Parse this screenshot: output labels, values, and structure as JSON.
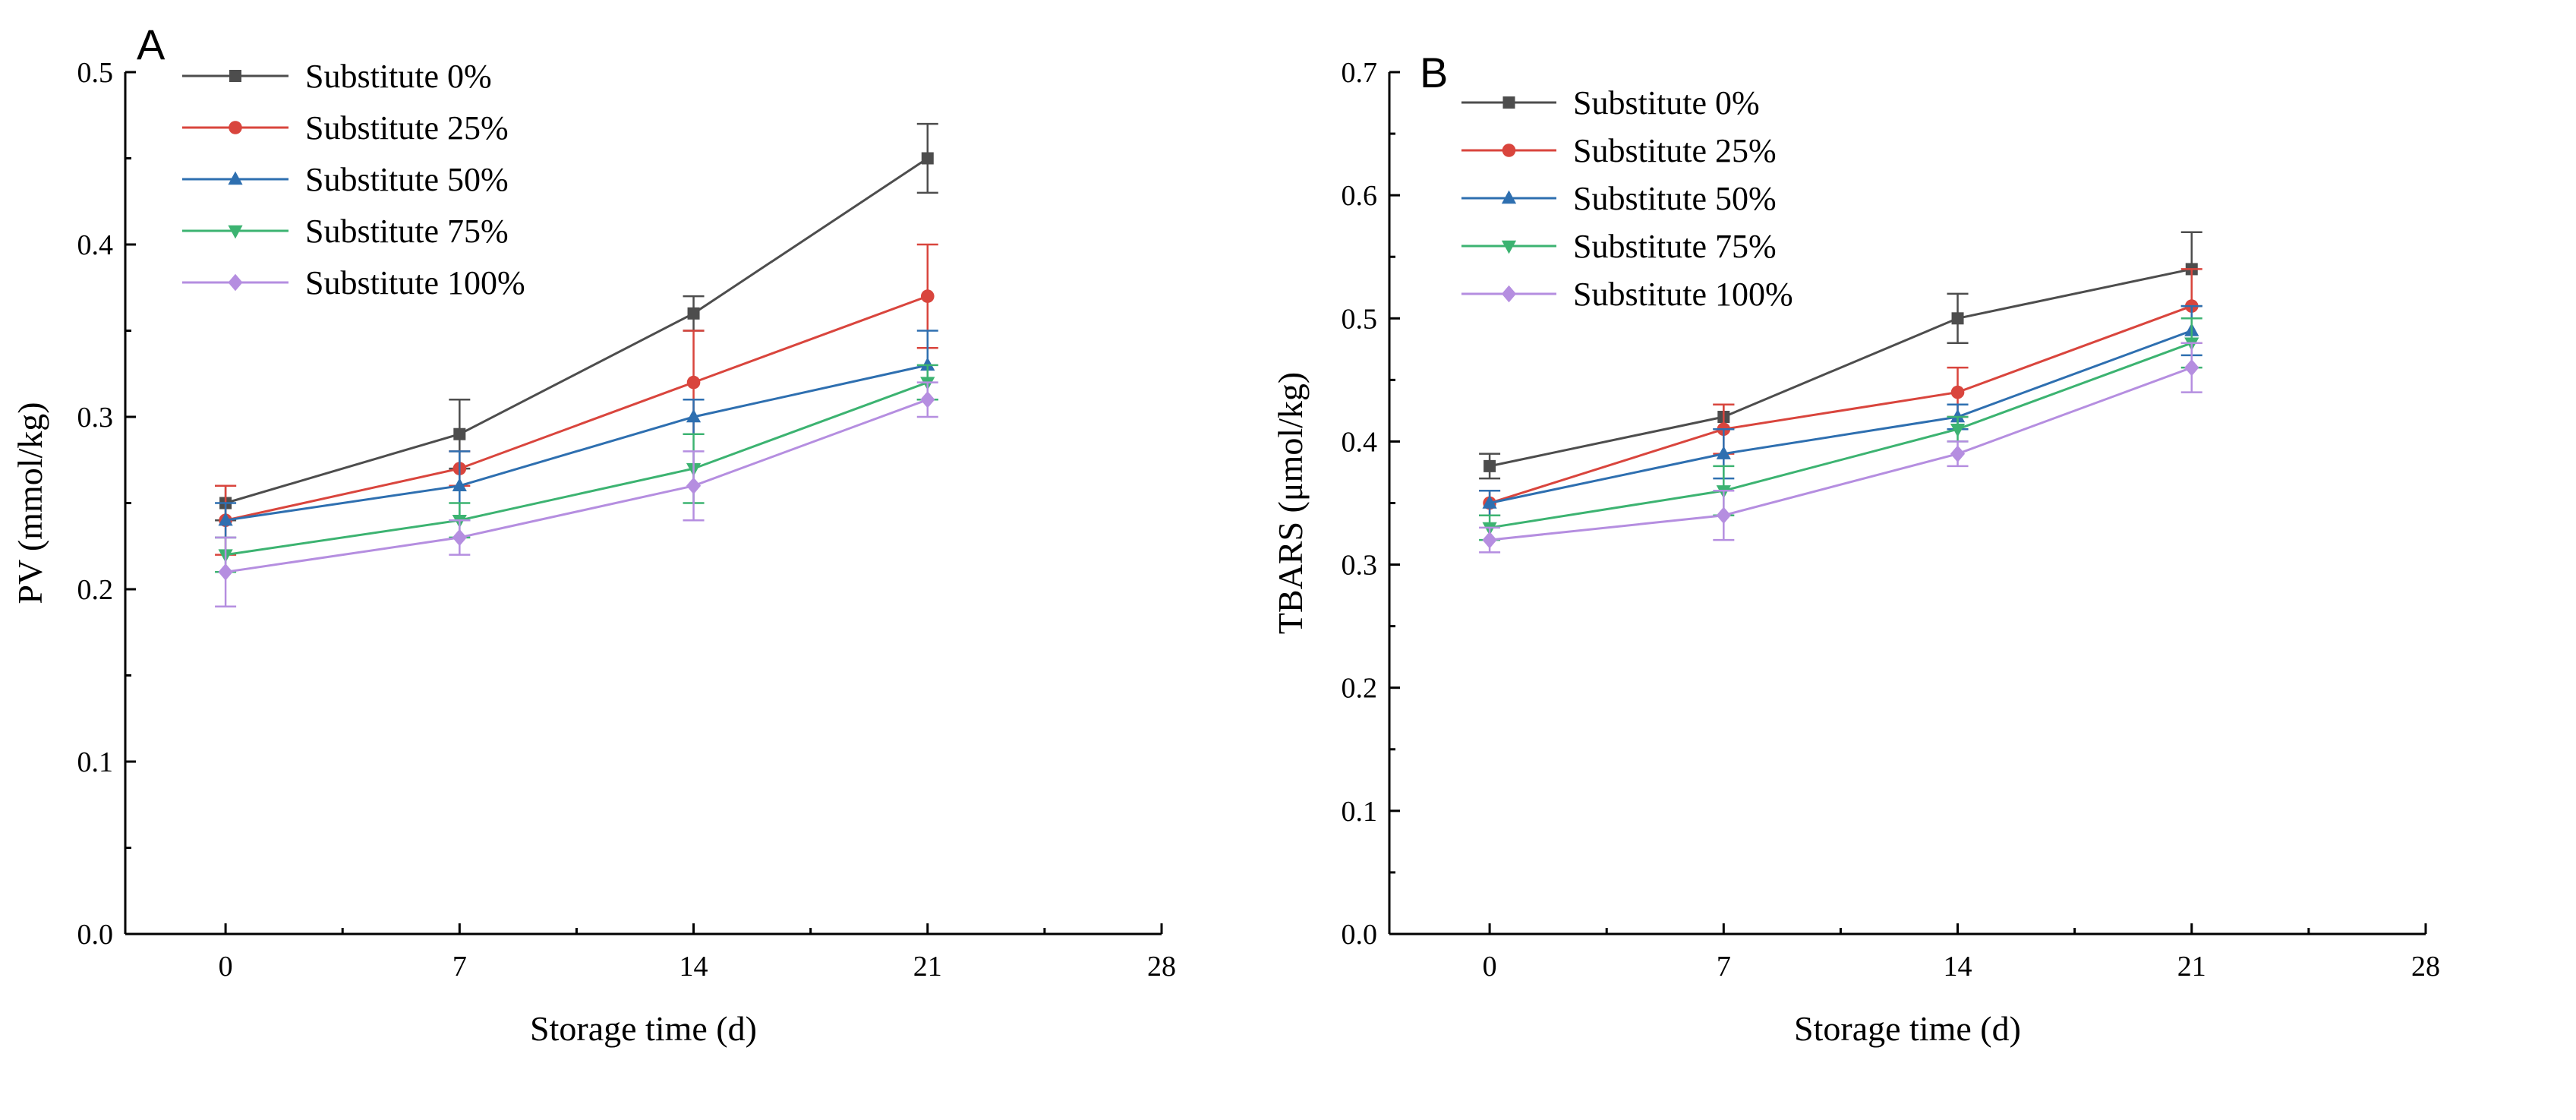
{
  "chart_data": [
    {
      "type": "line",
      "panel_label": "A",
      "xlabel": "Storage time (d)",
      "ylabel": "PV (mmol/kg)",
      "x_ticks": [
        0,
        7,
        14,
        21,
        28
      ],
      "y_ticks": [
        0.0,
        0.1,
        0.2,
        0.3,
        0.4,
        0.5
      ],
      "y_tick_labels": [
        "0.0",
        "0.1",
        "0.2",
        "0.3",
        "0.4",
        "0.5"
      ],
      "xlim": [
        -3,
        28
      ],
      "ylim": [
        0,
        0.5
      ],
      "legend_position": "top-left",
      "grid": false,
      "x": [
        0,
        7,
        14,
        21
      ],
      "series": [
        {
          "name": "Substitute 0%",
          "color": "#4d4d4d",
          "marker": "square",
          "values": [
            0.25,
            0.29,
            0.36,
            0.45
          ],
          "errors": [
            0.01,
            0.02,
            0.01,
            0.02
          ]
        },
        {
          "name": "Substitute 25%",
          "color": "#d9453d",
          "marker": "circle",
          "values": [
            0.24,
            0.27,
            0.32,
            0.37
          ],
          "errors": [
            0.02,
            0.01,
            0.03,
            0.03
          ]
        },
        {
          "name": "Substitute 50%",
          "color": "#2e6fb0",
          "marker": "triangle-up",
          "values": [
            0.24,
            0.26,
            0.3,
            0.33
          ],
          "errors": [
            0.01,
            0.02,
            0.01,
            0.02
          ]
        },
        {
          "name": "Substitute 75%",
          "color": "#3cb371",
          "marker": "triangle-down",
          "values": [
            0.22,
            0.24,
            0.27,
            0.32
          ],
          "errors": [
            0.01,
            0.01,
            0.02,
            0.01
          ]
        },
        {
          "name": "Substitute 100%",
          "color": "#b58ee0",
          "marker": "diamond",
          "values": [
            0.21,
            0.23,
            0.26,
            0.31
          ],
          "errors": [
            0.02,
            0.01,
            0.02,
            0.01
          ]
        }
      ]
    },
    {
      "type": "line",
      "panel_label": "B",
      "xlabel": "Storage time (d)",
      "ylabel": "TBARS (μmol/kg)",
      "x_ticks": [
        0,
        7,
        14,
        21,
        28
      ],
      "y_ticks": [
        0.0,
        0.1,
        0.2,
        0.3,
        0.4,
        0.5,
        0.6,
        0.7
      ],
      "y_tick_labels": [
        "0.0",
        "0.1",
        "0.2",
        "0.3",
        "0.4",
        "0.5",
        "0.6",
        "0.7"
      ],
      "xlim": [
        -3,
        28
      ],
      "ylim": [
        0,
        0.7
      ],
      "legend_position": "top-left",
      "grid": false,
      "x": [
        0,
        7,
        14,
        21
      ],
      "series": [
        {
          "name": "Substitute 0%",
          "color": "#4d4d4d",
          "marker": "square",
          "values": [
            0.38,
            0.42,
            0.5,
            0.54
          ],
          "errors": [
            0.01,
            0.01,
            0.02,
            0.03
          ]
        },
        {
          "name": "Substitute 25%",
          "color": "#d9453d",
          "marker": "circle",
          "values": [
            0.35,
            0.41,
            0.44,
            0.51
          ],
          "errors": [
            0.01,
            0.02,
            0.02,
            0.03
          ]
        },
        {
          "name": "Substitute 50%",
          "color": "#2e6fb0",
          "marker": "triangle-up",
          "values": [
            0.35,
            0.39,
            0.42,
            0.49
          ],
          "errors": [
            0.01,
            0.02,
            0.01,
            0.02
          ]
        },
        {
          "name": "Substitute 75%",
          "color": "#3cb371",
          "marker": "triangle-down",
          "values": [
            0.33,
            0.36,
            0.41,
            0.48
          ],
          "errors": [
            0.01,
            0.02,
            0.01,
            0.02
          ]
        },
        {
          "name": "Substitute 100%",
          "color": "#b58ee0",
          "marker": "diamond",
          "values": [
            0.32,
            0.34,
            0.39,
            0.46
          ],
          "errors": [
            0.01,
            0.02,
            0.01,
            0.02
          ]
        }
      ]
    }
  ]
}
